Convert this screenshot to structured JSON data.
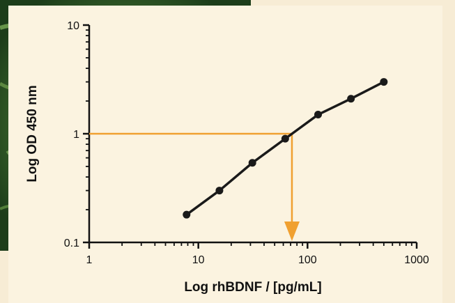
{
  "colors": {
    "background": "#fbf3e0",
    "page_bg": "#f7ecd5",
    "photo_green": "#2f6a2b",
    "series": "#1a1a1a",
    "annotation": "#f0a030"
  },
  "chart_data": {
    "type": "line",
    "title": "",
    "xlabel": "Log rhBDNF / [pg/mL]",
    "ylabel": "Log OD 450 nm",
    "xscale": "log",
    "yscale": "log",
    "xlim": [
      1,
      1000
    ],
    "ylim": [
      0.1,
      10
    ],
    "x_ticks": [
      "1",
      "10",
      "100",
      "1000"
    ],
    "y_ticks": [
      "10",
      "1",
      "0.1"
    ],
    "grid": false,
    "legend": "none",
    "series": [
      {
        "x": [
          7.8,
          15.6,
          31.25,
          62.5,
          125,
          250,
          500
        ],
        "y": [
          0.18,
          0.3,
          0.54,
          0.9,
          1.5,
          2.1,
          3.0
        ]
      }
    ],
    "annotation": {
      "type": "interpolation-arrow",
      "x": 72,
      "y": 1.0
    }
  }
}
